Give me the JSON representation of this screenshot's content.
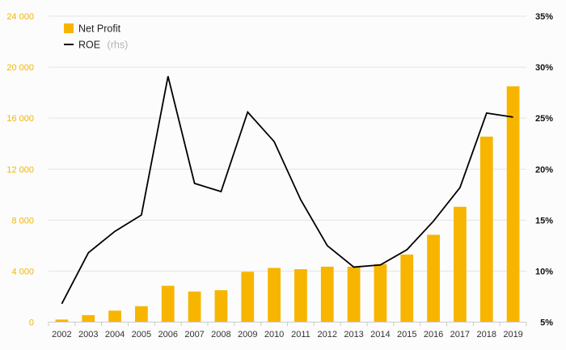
{
  "chart_data": {
    "type": "bar+line",
    "categories": [
      "2002",
      "2003",
      "2004",
      "2005",
      "2006",
      "2007",
      "2008",
      "2009",
      "2010",
      "2011",
      "2012",
      "2013",
      "2014",
      "2015",
      "2016",
      "2017",
      "2018",
      "2019"
    ],
    "series": [
      {
        "name": "Net Profit",
        "type": "bar",
        "axis": "left",
        "color": "#f7b500",
        "values": [
          200,
          550,
          900,
          1250,
          2850,
          2400,
          2500,
          3950,
          4250,
          4150,
          4350,
          4350,
          4550,
          5300,
          6850,
          9050,
          14550,
          18500
        ]
      },
      {
        "name": "ROE",
        "name_note": "(rhs)",
        "type": "line",
        "axis": "right",
        "color": "#000000",
        "values": [
          6.8,
          11.8,
          13.9,
          15.5,
          29.1,
          18.6,
          17.8,
          25.6,
          22.7,
          17.0,
          12.5,
          10.4,
          10.6,
          12.1,
          14.9,
          18.2,
          25.5,
          25.1
        ]
      }
    ],
    "y_left": {
      "ticks": [
        "0",
        "4 000",
        "8 000",
        "12 000",
        "16 000",
        "20 000",
        "24 000"
      ],
      "ylim": [
        0,
        24000
      ],
      "color": "#f2b600"
    },
    "y_right": {
      "ticks": [
        "5%",
        "10%",
        "15%",
        "20%",
        "25%",
        "30%",
        "35%"
      ],
      "ylim": [
        5,
        35
      ]
    },
    "grid": true,
    "legend_position": "top-left"
  }
}
